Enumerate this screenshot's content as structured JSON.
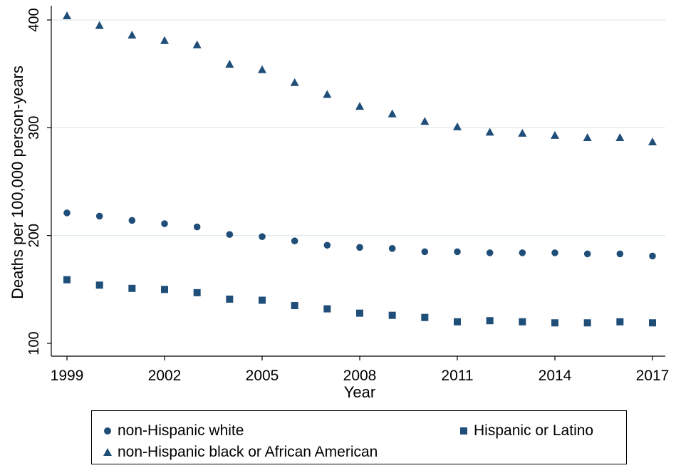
{
  "chart_data": {
    "type": "scatter",
    "xlabel": "Year",
    "ylabel": "Deaths per 100,000 person-years",
    "xlim": [
      1999,
      2017
    ],
    "ylim": [
      100,
      400
    ],
    "x_ticks": [
      1999,
      2002,
      2005,
      2008,
      2011,
      2014,
      2017
    ],
    "y_ticks": [
      100,
      200,
      300,
      400
    ],
    "grid": "horizontal",
    "legend_position": "bottom",
    "marker_color": "#1f4e79",
    "x": [
      1999,
      2000,
      2001,
      2002,
      2003,
      2004,
      2005,
      2006,
      2007,
      2008,
      2009,
      2010,
      2011,
      2012,
      2013,
      2014,
      2015,
      2016,
      2017
    ],
    "series": [
      {
        "name": "non-Hispanic white",
        "marker": "circle",
        "values": [
          221,
          218,
          214,
          211,
          208,
          201,
          199,
          195,
          191,
          189,
          188,
          185,
          185,
          184,
          184,
          184,
          183,
          183,
          181
        ]
      },
      {
        "name": "Hispanic or Latino",
        "marker": "square",
        "values": [
          159,
          154,
          151,
          150,
          147,
          141,
          140,
          135,
          132,
          128,
          126,
          124,
          120,
          121,
          120,
          119,
          119,
          120,
          119
        ]
      },
      {
        "name": "non-Hispanic black or African American",
        "marker": "triangle",
        "values": [
          404,
          395,
          386,
          381,
          377,
          359,
          354,
          342,
          331,
          320,
          313,
          306,
          301,
          296,
          295,
          293,
          291,
          291,
          287
        ]
      }
    ]
  }
}
